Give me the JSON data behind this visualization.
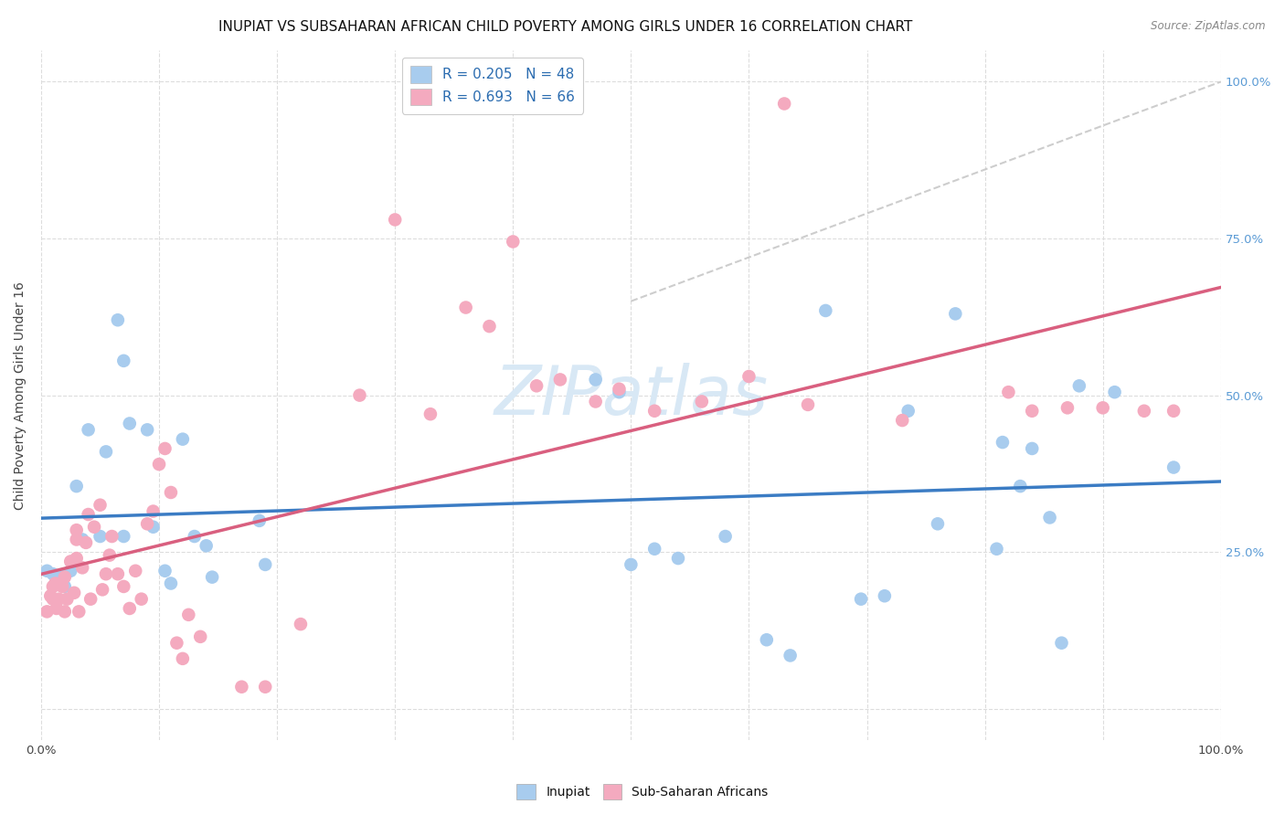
{
  "title": "INUPIAT VS SUBSAHARAN AFRICAN CHILD POVERTY AMONG GIRLS UNDER 16 CORRELATION CHART",
  "source": "Source: ZipAtlas.com",
  "ylabel": "Child Poverty Among Girls Under 16",
  "xlim": [
    0,
    1
  ],
  "ylim": [
    -0.05,
    1.05
  ],
  "inupiat_color": "#A8CCEE",
  "subsaharan_color": "#F4AABF",
  "trendline_inupiat_color": "#3B7CC4",
  "trendline_subsaharan_color": "#D95F7F",
  "diagonal_color": "#C8C8C8",
  "legend_label1": "R = 0.205   N = 48",
  "legend_label2": "R = 0.693   N = 66",
  "background_color": "#FFFFFF",
  "grid_color": "#DDDDDD",
  "inupiat_points": [
    [
      0.005,
      0.22
    ],
    [
      0.01,
      0.215
    ],
    [
      0.015,
      0.2
    ],
    [
      0.02,
      0.215
    ],
    [
      0.02,
      0.195
    ],
    [
      0.025,
      0.22
    ],
    [
      0.03,
      0.355
    ],
    [
      0.035,
      0.27
    ],
    [
      0.04,
      0.445
    ],
    [
      0.05,
      0.275
    ],
    [
      0.055,
      0.41
    ],
    [
      0.065,
      0.62
    ],
    [
      0.07,
      0.555
    ],
    [
      0.07,
      0.275
    ],
    [
      0.075,
      0.455
    ],
    [
      0.09,
      0.445
    ],
    [
      0.095,
      0.29
    ],
    [
      0.105,
      0.22
    ],
    [
      0.11,
      0.2
    ],
    [
      0.12,
      0.43
    ],
    [
      0.13,
      0.275
    ],
    [
      0.14,
      0.26
    ],
    [
      0.145,
      0.21
    ],
    [
      0.185,
      0.3
    ],
    [
      0.19,
      0.23
    ],
    [
      0.47,
      0.525
    ],
    [
      0.49,
      0.505
    ],
    [
      0.5,
      0.23
    ],
    [
      0.52,
      0.255
    ],
    [
      0.54,
      0.24
    ],
    [
      0.58,
      0.275
    ],
    [
      0.615,
      0.11
    ],
    [
      0.635,
      0.085
    ],
    [
      0.665,
      0.635
    ],
    [
      0.695,
      0.175
    ],
    [
      0.715,
      0.18
    ],
    [
      0.735,
      0.475
    ],
    [
      0.76,
      0.295
    ],
    [
      0.775,
      0.63
    ],
    [
      0.81,
      0.255
    ],
    [
      0.815,
      0.425
    ],
    [
      0.83,
      0.355
    ],
    [
      0.84,
      0.415
    ],
    [
      0.855,
      0.305
    ],
    [
      0.865,
      0.105
    ],
    [
      0.88,
      0.515
    ],
    [
      0.91,
      0.505
    ],
    [
      0.96,
      0.385
    ]
  ],
  "subsaharan_points": [
    [
      0.005,
      0.155
    ],
    [
      0.008,
      0.18
    ],
    [
      0.01,
      0.175
    ],
    [
      0.01,
      0.195
    ],
    [
      0.012,
      0.2
    ],
    [
      0.013,
      0.16
    ],
    [
      0.015,
      0.175
    ],
    [
      0.018,
      0.195
    ],
    [
      0.02,
      0.21
    ],
    [
      0.02,
      0.155
    ],
    [
      0.022,
      0.175
    ],
    [
      0.025,
      0.235
    ],
    [
      0.028,
      0.185
    ],
    [
      0.03,
      0.24
    ],
    [
      0.03,
      0.27
    ],
    [
      0.03,
      0.285
    ],
    [
      0.032,
      0.155
    ],
    [
      0.035,
      0.225
    ],
    [
      0.038,
      0.265
    ],
    [
      0.04,
      0.31
    ],
    [
      0.042,
      0.175
    ],
    [
      0.045,
      0.29
    ],
    [
      0.05,
      0.325
    ],
    [
      0.052,
      0.19
    ],
    [
      0.055,
      0.215
    ],
    [
      0.058,
      0.245
    ],
    [
      0.06,
      0.275
    ],
    [
      0.065,
      0.215
    ],
    [
      0.07,
      0.195
    ],
    [
      0.075,
      0.16
    ],
    [
      0.08,
      0.22
    ],
    [
      0.085,
      0.175
    ],
    [
      0.09,
      0.295
    ],
    [
      0.095,
      0.315
    ],
    [
      0.1,
      0.39
    ],
    [
      0.105,
      0.415
    ],
    [
      0.11,
      0.345
    ],
    [
      0.115,
      0.105
    ],
    [
      0.12,
      0.08
    ],
    [
      0.125,
      0.15
    ],
    [
      0.135,
      0.115
    ],
    [
      0.17,
      0.035
    ],
    [
      0.19,
      0.035
    ],
    [
      0.22,
      0.135
    ],
    [
      0.27,
      0.5
    ],
    [
      0.3,
      0.78
    ],
    [
      0.33,
      0.47
    ],
    [
      0.36,
      0.64
    ],
    [
      0.38,
      0.61
    ],
    [
      0.4,
      0.745
    ],
    [
      0.42,
      0.515
    ],
    [
      0.44,
      0.525
    ],
    [
      0.47,
      0.49
    ],
    [
      0.49,
      0.51
    ],
    [
      0.52,
      0.475
    ],
    [
      0.56,
      0.49
    ],
    [
      0.6,
      0.53
    ],
    [
      0.65,
      0.485
    ],
    [
      0.73,
      0.46
    ],
    [
      0.82,
      0.505
    ],
    [
      0.84,
      0.475
    ],
    [
      0.87,
      0.48
    ],
    [
      0.9,
      0.48
    ],
    [
      0.935,
      0.475
    ],
    [
      0.96,
      0.475
    ],
    [
      0.63,
      0.965
    ]
  ],
  "title_fontsize": 11,
  "axis_label_fontsize": 10,
  "tick_fontsize": 9.5,
  "legend_fontsize": 11
}
